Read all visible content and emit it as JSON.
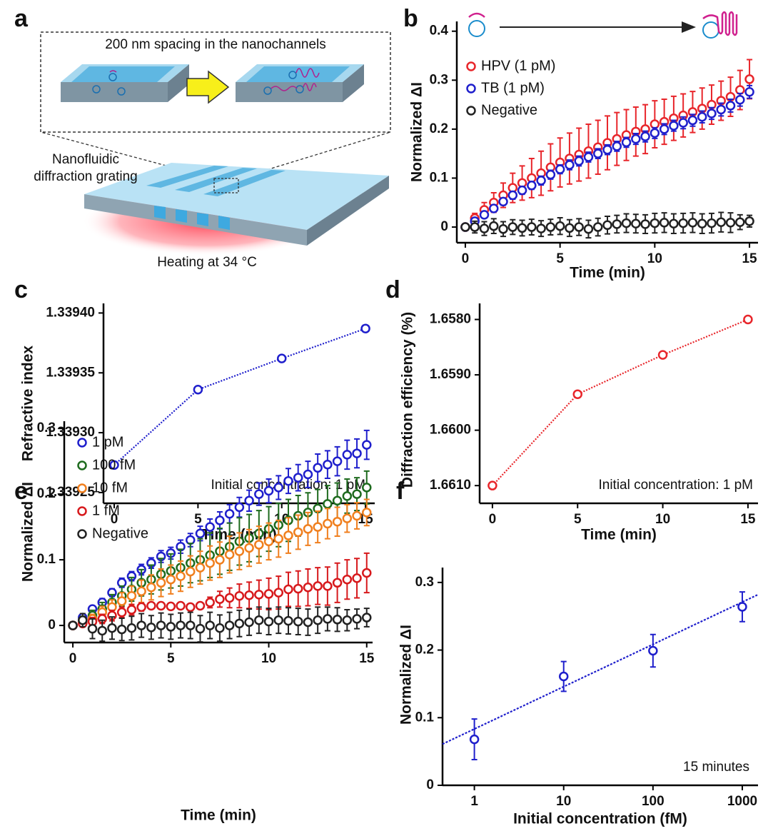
{
  "diagram": {
    "panel": "a",
    "channel_caption": "200 nm spacing in the nanochannels",
    "device_label": [
      "Nanofluidic",
      "diffraction grating"
    ],
    "heating_label": "Heating at 34 °C"
  },
  "chart_data": [
    {
      "panel": "b",
      "type": "scatter",
      "xlabel": "Time (min)",
      "ylabel": "Normalized ΔI",
      "x": [
        0,
        0.5,
        1,
        1.5,
        2,
        2.5,
        3,
        3.5,
        4,
        4.5,
        5,
        5.5,
        6,
        6.5,
        7,
        7.5,
        8,
        8.5,
        9,
        9.5,
        10,
        10.5,
        11,
        11.5,
        12,
        12.5,
        13,
        13.5,
        14,
        14.5,
        15
      ],
      "xlim": [
        -0.45,
        15.45
      ],
      "ylim": [
        -0.032,
        0.42
      ],
      "xticks": [
        0,
        5,
        10,
        15
      ],
      "yticks": [
        0,
        0.1,
        0.2,
        0.3,
        0.4
      ],
      "legend": "upper left",
      "series": [
        {
          "name": "HPV (1 pM)",
          "color": "#e8262b",
          "values": [
            0,
            0.018,
            0.035,
            0.05,
            0.065,
            0.08,
            0.09,
            0.1,
            0.11,
            0.122,
            0.132,
            0.14,
            0.148,
            0.155,
            0.163,
            0.172,
            0.18,
            0.188,
            0.195,
            0.2,
            0.21,
            0.215,
            0.222,
            0.228,
            0.235,
            0.242,
            0.25,
            0.258,
            0.266,
            0.28,
            0.302
          ],
          "errors": [
            0,
            0.01,
            0.015,
            0.02,
            0.025,
            0.03,
            0.035,
            0.04,
            0.045,
            0.048,
            0.05,
            0.052,
            0.054,
            0.055,
            0.055,
            0.055,
            0.054,
            0.052,
            0.05,
            0.05,
            0.048,
            0.046,
            0.045,
            0.044,
            0.042,
            0.042,
            0.04,
            0.04,
            0.04,
            0.04,
            0.04
          ]
        },
        {
          "name": "TB (1 pM)",
          "color": "#1f1fcc",
          "values": [
            0,
            0.012,
            0.025,
            0.038,
            0.052,
            0.065,
            0.075,
            0.085,
            0.095,
            0.107,
            0.118,
            0.127,
            0.135,
            0.143,
            0.15,
            0.158,
            0.165,
            0.173,
            0.18,
            0.185,
            0.192,
            0.2,
            0.207,
            0.213,
            0.218,
            0.225,
            0.232,
            0.24,
            0.248,
            0.26,
            0.276
          ],
          "errors": [
            0,
            0.006,
            0.006,
            0.007,
            0.007,
            0.008,
            0.008,
            0.008,
            0.009,
            0.009,
            0.009,
            0.01,
            0.01,
            0.01,
            0.01,
            0.01,
            0.01,
            0.01,
            0.011,
            0.011,
            0.011,
            0.011,
            0.011,
            0.012,
            0.012,
            0.012,
            0.012,
            0.013,
            0.013,
            0.013,
            0.013
          ]
        },
        {
          "name": "Negative",
          "color": "#222222",
          "values": [
            0,
            0,
            -0.003,
            0.002,
            -0.004,
            0,
            -0.002,
            0,
            -0.003,
            0,
            0.002,
            -0.002,
            0,
            -0.004,
            0,
            0.004,
            0.006,
            0.008,
            0.007,
            0.006,
            0.008,
            0.009,
            0.007,
            0.008,
            0.009,
            0.007,
            0.008,
            0.01,
            0.009,
            0.01,
            0.012
          ],
          "errors": [
            0,
            0.012,
            0.014,
            0.015,
            0.015,
            0.015,
            0.016,
            0.016,
            0.016,
            0.016,
            0.017,
            0.017,
            0.017,
            0.018,
            0.018,
            0.018,
            0.018,
            0.019,
            0.019,
            0.019,
            0.02,
            0.02,
            0.02,
            0.02,
            0.02,
            0.02,
            0.02,
            0.02,
            0.02,
            0.015,
            0.012
          ]
        }
      ]
    },
    {
      "panel": "c",
      "type": "line",
      "xlabel": "Time (min)",
      "ylabel": "Refractive index",
      "annotation": "Initial concentration: 1 pM",
      "x": [
        0,
        5,
        10,
        15
      ],
      "xlim": [
        -0.64,
        15.55
      ],
      "ylim": [
        1.339241,
        1.339408
      ],
      "xticks": [
        0,
        5,
        10,
        15
      ],
      "yticks": [
        1.33925,
        {
          "value": 1.3393,
          "label": "1.33930"
        },
        1.33935,
        {
          "value": 1.3394,
          "label": "1.33940"
        }
      ],
      "series": [
        {
          "color": "#1f1fcc",
          "values": [
            1.339273,
            1.339336,
            1.339362,
            1.339387
          ]
        }
      ]
    },
    {
      "panel": "d",
      "type": "line",
      "xlabel": "Time (min)",
      "ylabel": "Diffraction efficiency (%)",
      "annotation": "Initial concentration: 1 pM",
      "x": [
        0,
        5,
        10,
        15
      ],
      "xlim": [
        -0.75,
        15.59
      ],
      "ylim": [
        1.66132,
        1.65771
      ],
      "xticks": [
        0,
        5,
        10,
        15
      ],
      "yticks": [
        {
          "value": 1.661,
          "label": "1.6610"
        },
        {
          "value": 1.66,
          "label": "1.6600"
        },
        {
          "value": 1.659,
          "label": "1.6590"
        },
        {
          "value": 1.658,
          "label": "1.6580"
        }
      ],
      "series": [
        {
          "color": "#e8262b",
          "values": [
            1.661,
            1.65935,
            1.65864,
            1.658
          ]
        }
      ]
    },
    {
      "panel": "e",
      "type": "scatter",
      "xlabel": "Time (min)",
      "ylabel": "Normalized ΔI",
      "x": [
        0,
        0.5,
        1,
        1.5,
        2,
        2.5,
        3,
        3.5,
        4,
        4.5,
        5,
        5.5,
        6,
        6.5,
        7,
        7.5,
        8,
        8.5,
        9,
        9.5,
        10,
        10.5,
        11,
        11.5,
        12,
        12.5,
        13,
        13.5,
        14,
        14.5,
        15
      ],
      "xlim": [
        -0.44,
        15.3
      ],
      "ylim": [
        -0.026,
        0.311
      ],
      "xticks": [
        0,
        5,
        10,
        15
      ],
      "yticks": [
        0,
        0.1,
        0.2,
        0.3
      ],
      "legend": "upper left",
      "series": [
        {
          "name": "1 pM",
          "color": "#1f1fcc",
          "values": [
            0,
            0.012,
            0.025,
            0.035,
            0.05,
            0.065,
            0.075,
            0.085,
            0.095,
            0.105,
            0.11,
            0.12,
            0.13,
            0.14,
            0.15,
            0.16,
            0.17,
            0.18,
            0.19,
            0.2,
            0.205,
            0.21,
            0.22,
            0.225,
            0.23,
            0.24,
            0.245,
            0.25,
            0.26,
            0.262,
            0.275
          ],
          "errors": [
            0,
            0.004,
            0.005,
            0.006,
            0.006,
            0.007,
            0.007,
            0.008,
            0.008,
            0.009,
            0.009,
            0.01,
            0.01,
            0.011,
            0.012,
            0.013,
            0.014,
            0.015,
            0.016,
            0.017,
            0.018,
            0.018,
            0.019,
            0.02,
            0.02,
            0.021,
            0.021,
            0.022,
            0.022,
            0.022,
            0.022
          ]
        },
        {
          "name": "100 fM",
          "color": "#1e6b1e",
          "values": [
            0,
            0.008,
            0.015,
            0.025,
            0.035,
            0.045,
            0.055,
            0.065,
            0.07,
            0.078,
            0.083,
            0.088,
            0.095,
            0.1,
            0.107,
            0.113,
            0.12,
            0.128,
            0.133,
            0.14,
            0.147,
            0.153,
            0.16,
            0.167,
            0.172,
            0.178,
            0.185,
            0.19,
            0.197,
            0.2,
            0.21
          ],
          "errors": [
            0,
            0.006,
            0.008,
            0.01,
            0.012,
            0.015,
            0.018,
            0.02,
            0.022,
            0.024,
            0.026,
            0.028,
            0.03,
            0.032,
            0.034,
            0.035,
            0.036,
            0.036,
            0.036,
            0.035,
            0.034,
            0.033,
            0.032,
            0.031,
            0.03,
            0.029,
            0.028,
            0.027,
            0.026,
            0.025,
            0.025
          ]
        },
        {
          "name": "10 fM",
          "color": "#f07f1e",
          "values": [
            0,
            0.005,
            0.01,
            0.02,
            0.028,
            0.037,
            0.045,
            0.052,
            0.058,
            0.065,
            0.07,
            0.075,
            0.082,
            0.088,
            0.095,
            0.1,
            0.108,
            0.113,
            0.118,
            0.123,
            0.128,
            0.132,
            0.137,
            0.142,
            0.147,
            0.15,
            0.155,
            0.158,
            0.163,
            0.167,
            0.172
          ],
          "errors": [
            0,
            0.005,
            0.007,
            0.009,
            0.011,
            0.013,
            0.015,
            0.017,
            0.019,
            0.021,
            0.022,
            0.023,
            0.024,
            0.025,
            0.026,
            0.027,
            0.028,
            0.028,
            0.028,
            0.028,
            0.028,
            0.028,
            0.027,
            0.026,
            0.025,
            0.024,
            0.023,
            0.022,
            0.021,
            0.02,
            0.02
          ]
        },
        {
          "name": "1 fM",
          "color": "#d7191c",
          "values": [
            0,
            0.003,
            0.006,
            0.01,
            0.015,
            0.02,
            0.024,
            0.028,
            0.03,
            0.03,
            0.029,
            0.03,
            0.028,
            0.03,
            0.035,
            0.04,
            0.042,
            0.045,
            0.046,
            0.047,
            0.048,
            0.05,
            0.055,
            0.056,
            0.058,
            0.06,
            0.06,
            0.065,
            0.07,
            0.072,
            0.08
          ],
          "errors": [
            0,
            0.005,
            0.006,
            0.007,
            0.008,
            0.008,
            0.008,
            0.006,
            0.004,
            0.003,
            0.003,
            0.003,
            0.003,
            0.004,
            0.008,
            0.012,
            0.015,
            0.018,
            0.02,
            0.022,
            0.024,
            0.025,
            0.026,
            0.027,
            0.028,
            0.028,
            0.029,
            0.03,
            0.03,
            0.03,
            0.03
          ]
        },
        {
          "name": "Negative",
          "color": "#222222",
          "values": [
            0,
            0.008,
            -0.005,
            -0.008,
            -0.004,
            -0.006,
            -0.004,
            0,
            -0.003,
            0,
            -0.002,
            0,
            0,
            -0.005,
            0,
            -0.004,
            0,
            0.003,
            0.005,
            0.008,
            0.006,
            0.008,
            0.007,
            0.006,
            0.005,
            0.008,
            0.01,
            0.009,
            0.008,
            0.01,
            0.012
          ],
          "errors": [
            0,
            0.01,
            0.015,
            0.016,
            0.017,
            0.017,
            0.018,
            0.018,
            0.018,
            0.019,
            0.019,
            0.019,
            0.02,
            0.02,
            0.02,
            0.02,
            0.02,
            0.02,
            0.02,
            0.02,
            0.02,
            0.02,
            0.02,
            0.02,
            0.02,
            0.02,
            0.018,
            0.018,
            0.016,
            0.015,
            0.014
          ]
        }
      ]
    },
    {
      "panel": "f",
      "type": "scatter",
      "xscale": "log",
      "xlabel": "Initial concentration (fM)",
      "ylabel": "Normalized ΔI",
      "annotation": "15 minutes",
      "x": [
        1,
        10,
        100,
        1000
      ],
      "xlim": [
        0.44,
        1500
      ],
      "ylim": [
        0,
        0.322
      ],
      "xticks": [
        1,
        10,
        100,
        1000
      ],
      "yticks": [
        0,
        0.1,
        0.2,
        0.3
      ],
      "series": [
        {
          "color": "#1f1fcc",
          "values": [
            0.068,
            0.161,
            0.199,
            0.264
          ],
          "errors": [
            0.03,
            0.022,
            0.024,
            0.022
          ]
        }
      ],
      "trend_line": {
        "color": "#1f1fcc",
        "x": [
          0.44,
          1500
        ],
        "values": [
          0.061,
          0.282
        ]
      }
    }
  ]
}
